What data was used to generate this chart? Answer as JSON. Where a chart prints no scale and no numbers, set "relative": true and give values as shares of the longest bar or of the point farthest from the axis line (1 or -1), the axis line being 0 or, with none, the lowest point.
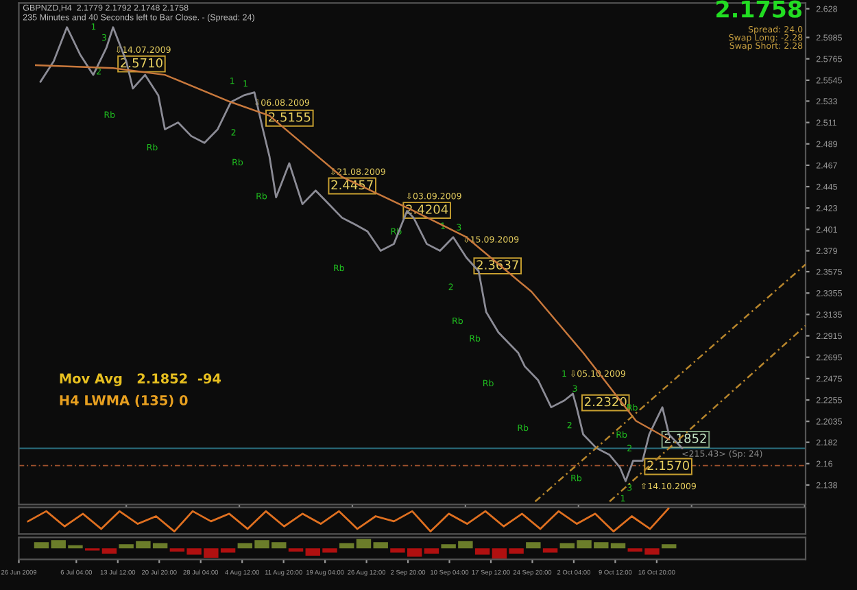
{
  "chart_data": [
    {
      "type": "line",
      "title": "GBPNZD,H4  2.1779 2.1792 2.1748 2.1758",
      "subtitle": "235 Minutes and 40 Seconds left to Bar Close. - (Spread: 24)",
      "series": [
        {
          "color": "#8c8c96",
          "x": [
            "2009-06-29T20:00",
            "2009-07-02T04:00",
            "2009-07-04T12:00",
            "2009-07-06T20:00",
            "2009-07-09T04:00",
            "2009-07-11T12:00",
            "2009-07-12T16:00",
            "2009-07-15T00:00",
            "2009-07-16T04:00",
            "2009-07-18T08:00",
            "2009-07-20T16:00",
            "2009-07-21T20:00",
            "2009-07-24T04:00",
            "2009-07-26T12:00",
            "2009-07-28T20:00",
            "2009-07-31T04:00",
            "2009-08-02T12:00",
            "2009-08-04T20:00",
            "2009-08-06T16:00",
            "2009-08-08T04:00",
            "2009-08-09T08:00",
            "2009-08-10T12:00",
            "2009-08-12T20:00",
            "2009-08-15T04:00",
            "2009-08-17T12:00",
            "2009-08-19T20:00",
            "2009-08-22T04:00",
            "2009-08-24T12:00",
            "2009-08-26T16:00",
            "2009-08-29T00:00",
            "2009-08-31T08:00",
            "2009-09-02T16:00",
            "2009-09-03T20:00",
            "2009-09-06T04:00",
            "2009-09-08T12:00",
            "2009-09-10T20:00",
            "2009-09-13T04:00",
            "2009-09-15T08:00",
            "2009-09-16T16:00",
            "2009-09-18T20:00",
            "2009-09-20T00:00",
            "2009-09-22T08:00",
            "2009-09-23T12:00",
            "2009-09-25T20:00",
            "2009-09-28T04:00",
            "2009-09-30T12:00",
            "2009-10-02T00:00",
            "2009-10-02T16:00",
            "2009-10-03T20:00",
            "2009-10-06T04:00",
            "2009-10-08T12:00",
            "2009-10-10T08:00",
            "2009-10-11T08:00",
            "2009-10-12T16:00",
            "2009-10-14T08:00",
            "2009-10-15T12:00",
            "2009-10-16T16:00",
            "2009-10-17T20:00",
            "2009-10-19T00:00",
            "2009-10-20T04:00",
            "2009-10-21T08:00"
          ],
          "values": [
            2.553,
            2.574,
            2.609,
            2.581,
            2.56,
            2.588,
            2.609,
            2.574,
            2.546,
            2.56,
            2.539,
            2.504,
            2.511,
            2.497,
            2.49,
            2.504,
            2.532,
            2.539,
            2.542,
            2.504,
            2.476,
            2.434,
            2.469,
            2.427,
            2.441,
            2.427,
            2.413,
            2.406,
            2.399,
            2.379,
            2.386,
            2.42,
            2.413,
            2.386,
            2.379,
            2.393,
            2.372,
            2.358,
            2.316,
            2.295,
            2.288,
            2.274,
            2.26,
            2.246,
            2.218,
            2.225,
            2.232,
            2.218,
            2.19,
            2.176,
            2.169,
            2.156,
            2.142,
            2.163,
            2.163,
            2.19,
            2.204,
            2.218,
            2.19,
            2.183,
            2.176
          ]
        },
        {
          "color": "#c8783c",
          "x": [
            "2009-06-29T00:00",
            "2009-07-12T16:00",
            "2009-07-21T20:00",
            "2009-08-02T12:00",
            "2009-08-09T08:00",
            "2009-08-22T04:00",
            "2009-09-03T20:00",
            "2009-09-13T04:00",
            "2009-09-24T16:00",
            "2009-10-03T20:00",
            "2009-10-13T04:00",
            "2009-10-19T00:00"
          ],
          "values": [
            2.57,
            2.567,
            2.56,
            2.532,
            2.518,
            2.455,
            2.42,
            2.393,
            2.337,
            2.274,
            2.204,
            2.185
          ]
        },
        {
          "color": "#b8862c",
          "line_style": "dashed",
          "x": [
            "2009-09-25T08:00",
            "2009-11-12T04:00"
          ],
          "values": [
            2.121,
            2.365
          ]
        },
        {
          "color": "#b8862c",
          "line_style": "dashed",
          "x": [
            "2009-10-08T12:00",
            "2009-11-12T04:00"
          ],
          "values": [
            2.121,
            2.302
          ]
        }
      ],
      "xlim": [
        "2009-06-26",
        "2009-11-12T04:00"
      ],
      "ylim": [
        2.118,
        2.634
      ],
      "yticks": [
        2.628,
        2.5985,
        2.5765,
        2.5545,
        2.533,
        2.511,
        2.489,
        2.467,
        2.445,
        2.423,
        2.401,
        2.379,
        2.3575,
        2.3355,
        2.3135,
        2.2915,
        2.2695,
        2.2475,
        2.2255,
        2.2035,
        2.182,
        2.16,
        2.138
      ],
      "tick_labels": "y",
      "ref_lines": [
        {
          "axis": "y",
          "value": 2.1758,
          "color": "#2a6f7f"
        },
        {
          "axis": "y",
          "value": 2.158,
          "color": "#a0522d",
          "line_style": "dashed"
        }
      ],
      "annotations": [
        "Mov Avg   2.1852  -94",
        "H4 LWMA (135) 0",
        "2.1758",
        "Spread: 24.0",
        "Swap Long: -2.28",
        "Swap Short: 2.28",
        "2.5710",
        "2.5155",
        "2.4457",
        "2.4204",
        "2.3637",
        "2.2320",
        "2.1852",
        "2.1570",
        "⇩14.07.2009",
        "⇩06.08.2009",
        "⇩21.08.2009",
        "⇩03.09.2009",
        "⇩15.09.2009",
        "⇩05.10.2009",
        "⇧14.10.2009",
        "<215.43> (Sp: 24)",
        "1",
        "3",
        "2",
        "Rb",
        "Rb",
        "1",
        "1",
        "2",
        "Rb",
        "Rb",
        "Rb",
        "Rb",
        "1",
        "3",
        "2",
        "Rb",
        "Rb",
        "Rb",
        "Rb",
        "1",
        "3",
        "2",
        "Rb",
        "Rb",
        "2",
        "Rb",
        "1",
        "3"
      ]
    },
    {
      "type": "line",
      "relative": true,
      "tick_labels": false,
      "categories": [
        null,
        null,
        null,
        null,
        null,
        null,
        null,
        null,
        null,
        null,
        null,
        null,
        null,
        null,
        null,
        null,
        null,
        null,
        null,
        null,
        null,
        null,
        null,
        null,
        null,
        null,
        null,
        null,
        null,
        null,
        null,
        null,
        null,
        null,
        null,
        null,
        null,
        null,
        null,
        null,
        null,
        null,
        null
      ],
      "series": [
        {
          "color": "#e07020",
          "values": [
            0.5,
            0.9,
            0.3,
            0.8,
            0.2,
            0.9,
            0.4,
            0.7,
            0.1,
            0.9,
            0.5,
            0.8,
            0.2,
            0.9,
            0.3,
            0.8,
            0.4,
            0.9,
            0.2,
            0.7,
            0.5,
            0.9,
            0.1,
            0.8,
            0.4,
            0.9,
            0.3,
            0.8,
            0.2,
            0.9,
            0.4,
            0.8,
            0.1,
            0.7,
            0.2,
            1.0,
            null,
            null,
            null,
            null,
            null,
            null,
            null
          ]
        }
      ]
    },
    {
      "type": "bar",
      "relative": true,
      "xlim": [
        "2009-06-26",
        "2009-11-12T04:00"
      ],
      "tick_labels": "x",
      "x": [
        "2009-06-30",
        "2009-07-03",
        "2009-07-06",
        "2009-07-09",
        "2009-07-12",
        "2009-07-15",
        "2009-07-18",
        "2009-07-21",
        "2009-07-24",
        "2009-07-27",
        "2009-07-30",
        "2009-08-02",
        "2009-08-05",
        "2009-08-08",
        "2009-08-11",
        "2009-08-14",
        "2009-08-17",
        "2009-08-20",
        "2009-08-23",
        "2009-08-26",
        "2009-08-29",
        "2009-09-01",
        "2009-09-04",
        "2009-09-07",
        "2009-09-10",
        "2009-09-13",
        "2009-09-16",
        "2009-09-19",
        "2009-09-22",
        "2009-09-25",
        "2009-09-28",
        "2009-10-01",
        "2009-10-04",
        "2009-10-07",
        "2009-10-10",
        "2009-10-13",
        "2009-10-16",
        "2009-10-19"
      ],
      "values": [
        0.6,
        0.8,
        0.3,
        -0.2,
        -0.5,
        0.4,
        0.7,
        0.5,
        -0.3,
        -0.6,
        -0.9,
        -0.4,
        0.5,
        0.8,
        0.6,
        -0.3,
        -0.7,
        -0.4,
        0.5,
        0.9,
        0.6,
        -0.4,
        -0.8,
        -0.5,
        0.4,
        0.7,
        -0.6,
        -1.0,
        -0.5,
        0.6,
        -0.4,
        0.5,
        0.8,
        0.6,
        0.5,
        -0.3,
        -0.6,
        0.4
      ],
      "colors": [
        "#6b7d2a",
        "#6b7d2a",
        "#6b7d2a",
        "#b01010",
        "#b01010",
        "#6b7d2a",
        "#6b7d2a",
        "#6b7d2a",
        "#b01010",
        "#b01010",
        "#b01010",
        "#b01010",
        "#6b7d2a",
        "#6b7d2a",
        "#6b7d2a",
        "#b01010",
        "#b01010",
        "#b01010",
        "#6b7d2a",
        "#6b7d2a",
        "#6b7d2a",
        "#b01010",
        "#b01010",
        "#b01010",
        "#6b7d2a",
        "#6b7d2a",
        "#b01010",
        "#b01010",
        "#b01010",
        "#6b7d2a",
        "#b01010",
        "#6b7d2a",
        "#6b7d2a",
        "#6b7d2a",
        "#6b7d2a",
        "#b01010",
        "#b01010",
        "#6b7d2a"
      ],
      "xticks": [
        {
          "value": "2009-06-26",
          "label": "26 Jun 2009"
        },
        {
          "value": "2009-07-06T04:00",
          "label": "6 Jul 04:00"
        },
        {
          "value": "2009-07-13T12:00",
          "label": "13 Jul 12:00"
        },
        {
          "value": "2009-07-20T20:00",
          "label": "20 Jul 20:00"
        },
        {
          "value": "2009-07-28T04:00",
          "label": "28 Jul 04:00"
        },
        {
          "value": "2009-08-04T12:00",
          "label": "4 Aug 12:00"
        },
        {
          "value": "2009-08-11T20:00",
          "label": "11 Aug 20:00"
        },
        {
          "value": "2009-08-19T04:00",
          "label": "19 Aug 04:00"
        },
        {
          "value": "2009-08-26T12:00",
          "label": "26 Aug 12:00"
        },
        {
          "value": "2009-09-02T20:00",
          "label": "2 Sep 20:00"
        },
        {
          "value": "2009-09-10T04:00",
          "label": "10 Sep 04:00"
        },
        {
          "value": "2009-09-17T12:00",
          "label": "17 Sep 12:00"
        },
        {
          "value": "2009-09-24T20:00",
          "label": "24 Sep 20:00"
        },
        {
          "value": "2009-10-02T04:00",
          "label": "2 Oct 04:00"
        },
        {
          "value": "2009-10-09T12:00",
          "label": "9 Oct 12:00"
        },
        {
          "value": "2009-10-16T20:00",
          "label": "16 Oct 20:00"
        }
      ]
    }
  ]
}
